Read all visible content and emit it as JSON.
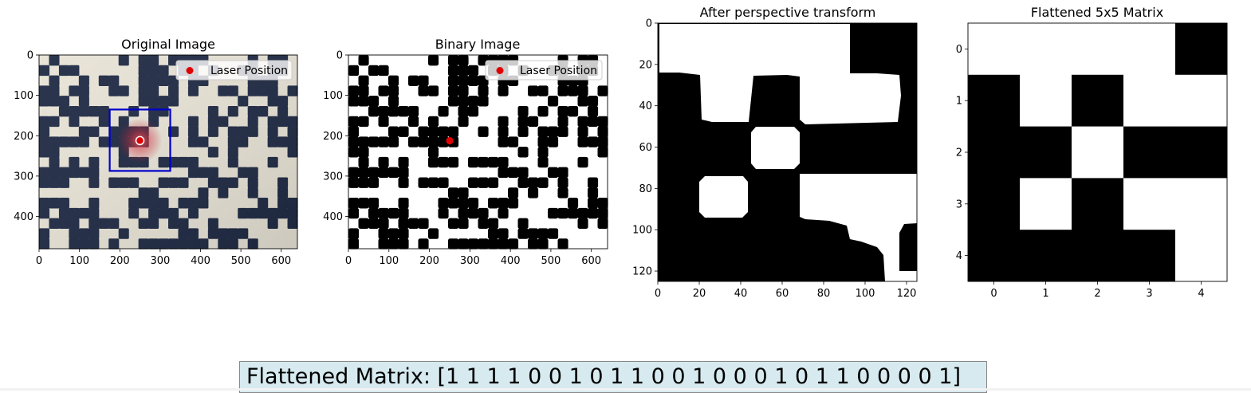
{
  "summary": {
    "label": "Flattened Matrix:",
    "text": "Flattened Matrix: [1 1 1 1 0 0 1 0 1 1 0 0 1 0 0 0 1 0 1 1 0 0 0 0 1]"
  },
  "colors": {
    "laser": "#e00000",
    "roi_box": "#0000cc",
    "summary_bg": "#d6eaf0"
  },
  "chart_data": [
    {
      "type": "image",
      "title": "Original Image",
      "image_description_tag": "camera-photo-of-black-white-grid-pattern",
      "xlim": [
        0,
        640
      ],
      "ylim": [
        480,
        0
      ],
      "x_ticks": [
        0,
        100,
        200,
        300,
        400,
        500,
        600
      ],
      "y_ticks": [
        0,
        100,
        200,
        300,
        400
      ],
      "legend": {
        "entries": [
          "Laser Position"
        ],
        "placement": "top-right"
      },
      "laser_point": {
        "x": 250,
        "y": 212
      },
      "roi_box": {
        "x0": 175,
        "y0": 135,
        "x1": 325,
        "y1": 287
      }
    },
    {
      "type": "image",
      "title": "Binary Image",
      "image_description_tag": "thresholded-black-white-grid-pattern",
      "xlim": [
        0,
        640
      ],
      "ylim": [
        480,
        0
      ],
      "x_ticks": [
        0,
        100,
        200,
        300,
        400,
        500,
        600
      ],
      "y_ticks": [
        0,
        100,
        200,
        300,
        400
      ],
      "legend": {
        "entries": [
          "Laser Position"
        ],
        "placement": "top-right"
      },
      "laser_point": {
        "x": 250,
        "y": 212
      }
    },
    {
      "type": "image",
      "title": "After perspective transform",
      "xlim": [
        0,
        125
      ],
      "ylim": [
        125,
        0
      ],
      "x_ticks": [
        0,
        20,
        40,
        60,
        80,
        100,
        120
      ],
      "y_ticks": [
        0,
        20,
        40,
        60,
        80,
        100,
        120
      ],
      "grid": [
        [
          1,
          1,
          1,
          1,
          0
        ],
        [
          0,
          1,
          0,
          1,
          1
        ],
        [
          0,
          0,
          1,
          0,
          0
        ],
        [
          0,
          1,
          0,
          1,
          1
        ],
        [
          0,
          0,
          0,
          0,
          1
        ]
      ]
    },
    {
      "type": "heatmap",
      "title": "Flattened 5x5 Matrix",
      "colormap": "binary-gray",
      "x_ticks": [
        0,
        1,
        2,
        3,
        4
      ],
      "y_ticks": [
        0,
        1,
        2,
        3,
        4
      ],
      "matrix": [
        [
          1,
          1,
          1,
          1,
          0
        ],
        [
          0,
          1,
          0,
          1,
          1
        ],
        [
          0,
          0,
          1,
          0,
          0
        ],
        [
          0,
          1,
          0,
          1,
          1
        ],
        [
          0,
          0,
          0,
          0,
          1
        ]
      ]
    }
  ]
}
